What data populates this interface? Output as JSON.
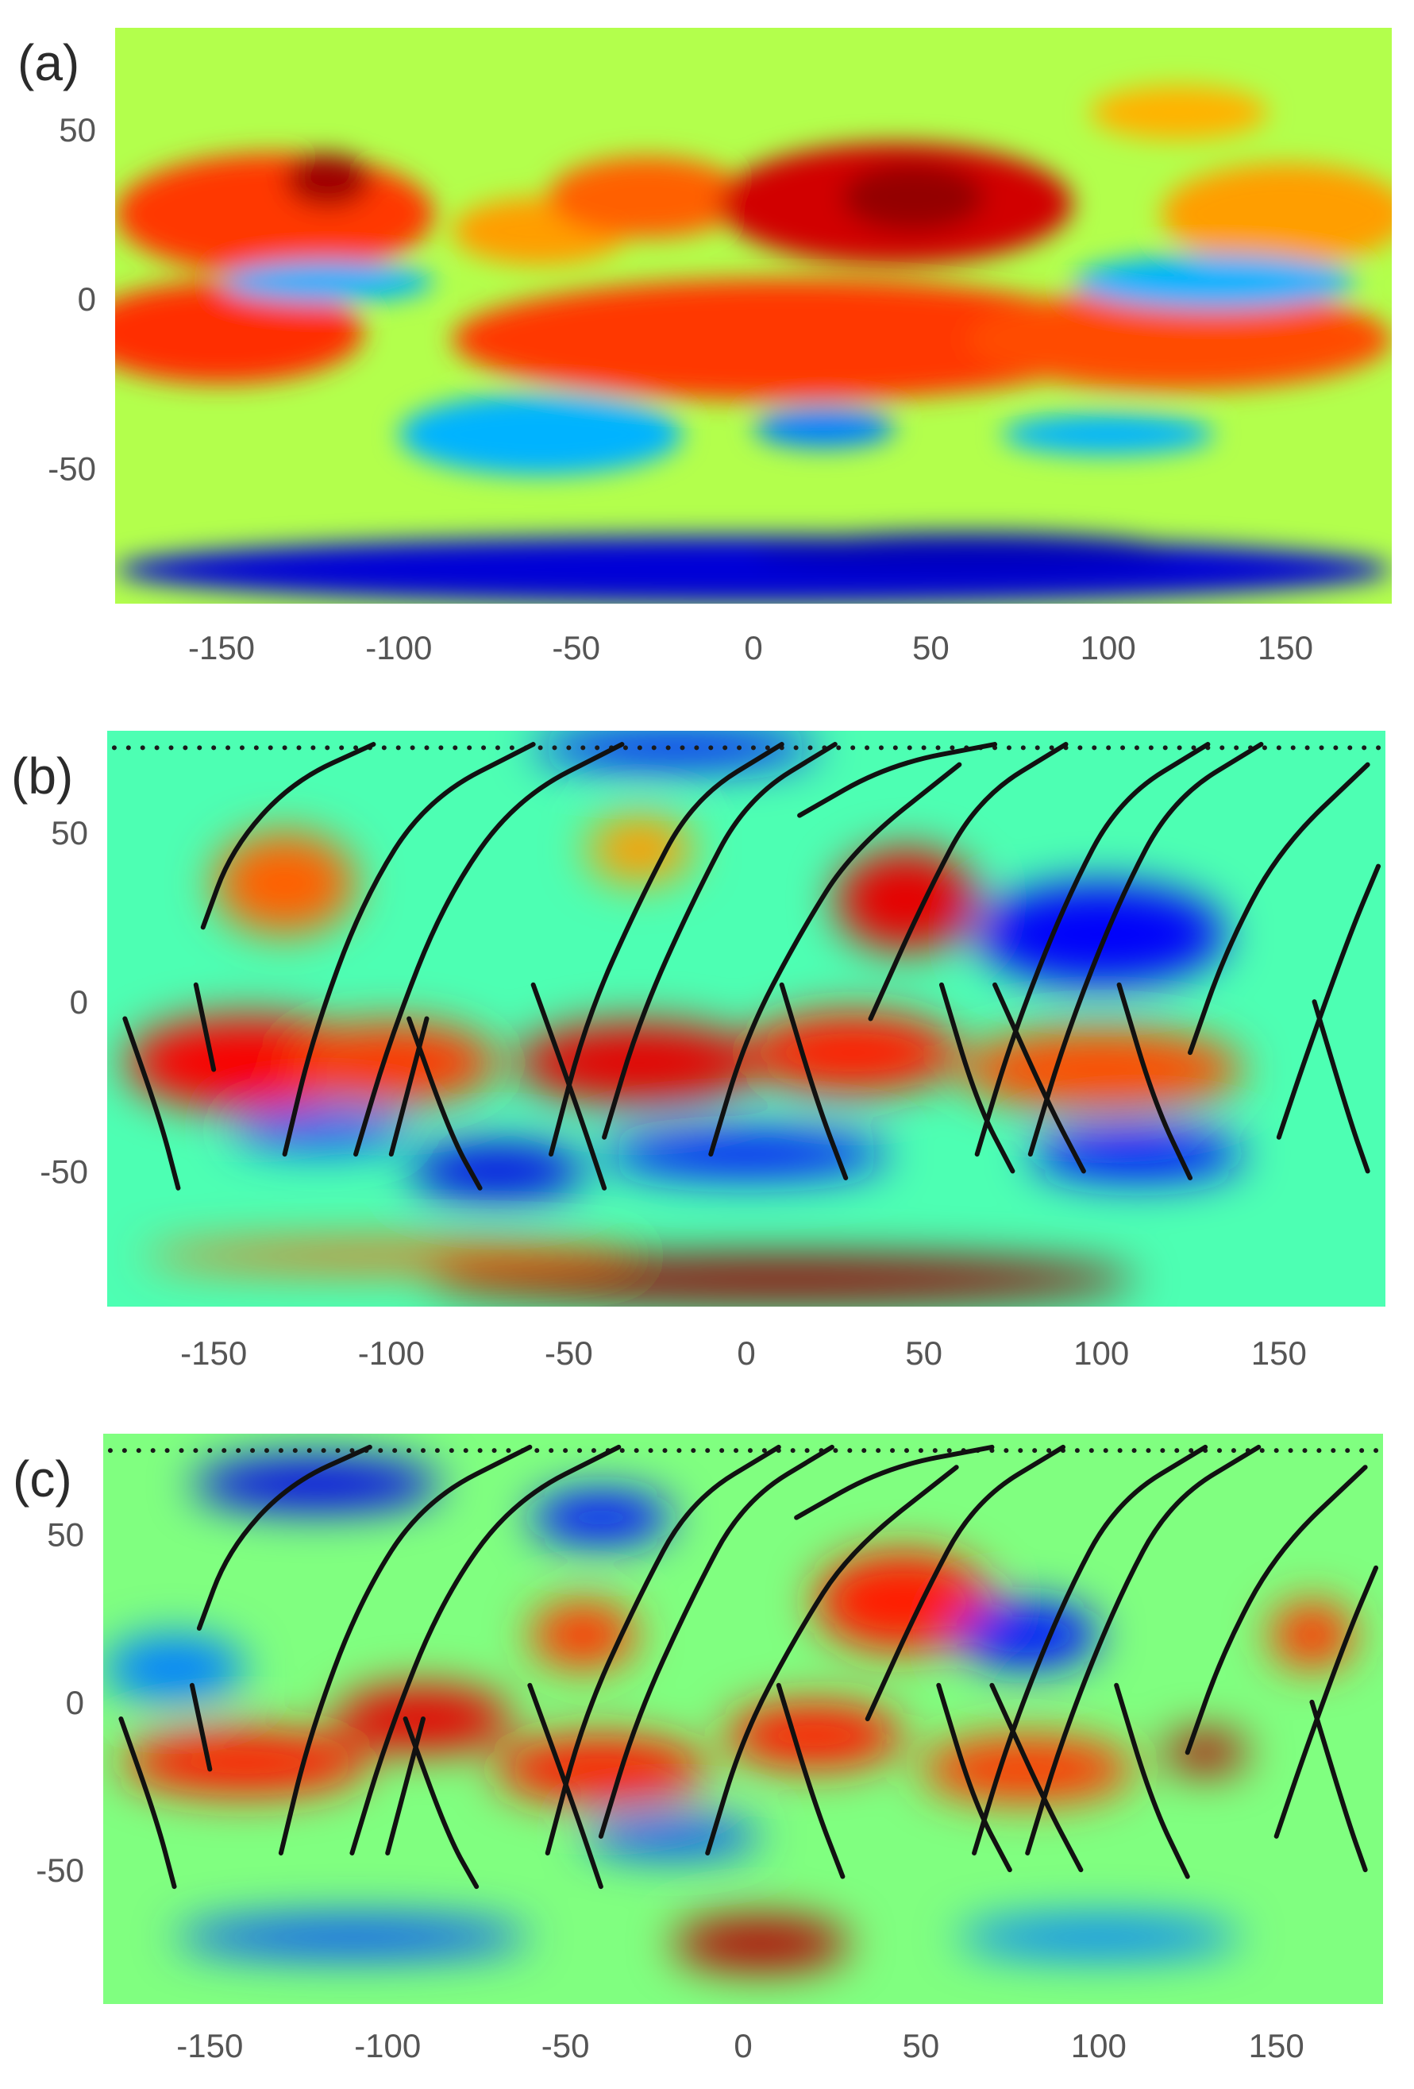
{
  "chart_data": [
    {
      "type": "heatmap",
      "panel_label": "(a)",
      "colormap": "jet",
      "xlim": [
        -180,
        180
      ],
      "ylim": [
        -90,
        80
      ],
      "x_ticks": [
        -150,
        -100,
        -50,
        0,
        50,
        100,
        150
      ],
      "y_ticks": [
        50,
        0,
        -50
      ],
      "x_tick_labels": [
        "-150",
        "-100",
        "-50",
        "0",
        "50",
        "100",
        "150"
      ],
      "y_tick_labels": [
        "50",
        "0",
        "-50"
      ],
      "field_blobs": [
        {
          "lon": -135,
          "lat": 25,
          "rx": 45,
          "ry": 18,
          "v": 0.82
        },
        {
          "lon": -120,
          "lat": 35,
          "rx": 12,
          "ry": 8,
          "v": 0.97
        },
        {
          "lon": -150,
          "lat": -10,
          "rx": 40,
          "ry": 15,
          "v": 0.83
        },
        {
          "lon": -60,
          "lat": 20,
          "rx": 25,
          "ry": 10,
          "v": 0.72
        },
        {
          "lon": -30,
          "lat": 30,
          "rx": 28,
          "ry": 12,
          "v": 0.78
        },
        {
          "lon": 40,
          "lat": 28,
          "rx": 50,
          "ry": 18,
          "v": 0.92
        },
        {
          "lon": 45,
          "lat": 30,
          "rx": 20,
          "ry": 10,
          "v": 0.98
        },
        {
          "lon": 10,
          "lat": -12,
          "rx": 95,
          "ry": 18,
          "v": 0.82
        },
        {
          "lon": 120,
          "lat": -12,
          "rx": 60,
          "ry": 15,
          "v": 0.8
        },
        {
          "lon": 150,
          "lat": 25,
          "rx": 35,
          "ry": 15,
          "v": 0.72
        },
        {
          "lon": 120,
          "lat": 55,
          "rx": 25,
          "ry": 8,
          "v": 0.7
        },
        {
          "lon": -60,
          "lat": -40,
          "rx": 40,
          "ry": 12,
          "v": 0.3
        },
        {
          "lon": 20,
          "lat": -38,
          "rx": 20,
          "ry": 6,
          "v": 0.25
        },
        {
          "lon": 100,
          "lat": -40,
          "rx": 30,
          "ry": 6,
          "v": 0.3
        },
        {
          "lon": -120,
          "lat": 5,
          "rx": 30,
          "ry": 6,
          "v": 0.3
        },
        {
          "lon": 130,
          "lat": 5,
          "rx": 40,
          "ry": 8,
          "v": 0.3
        },
        {
          "lon": 0,
          "lat": -80,
          "rx": 180,
          "ry": 10,
          "v": 0.08
        },
        {
          "lon": 60,
          "lat": -75,
          "rx": 60,
          "ry": 6,
          "v": 0.05
        }
      ],
      "background_value": 0.55,
      "tracks": []
    },
    {
      "type": "heatmap",
      "panel_label": "(b)",
      "colormap": "jet",
      "xlim": [
        -180,
        180
      ],
      "ylim": [
        -90,
        80
      ],
      "x_ticks": [
        -150,
        -100,
        -50,
        0,
        50,
        100,
        150
      ],
      "y_ticks": [
        50,
        0,
        -50
      ],
      "x_tick_labels": [
        "-150",
        "-100",
        "-50",
        "0",
        "50",
        "100",
        "150"
      ],
      "y_tick_labels": [
        "50",
        "0",
        "-50"
      ],
      "field_blobs": [
        {
          "lon": -140,
          "lat": -18,
          "rx": 35,
          "ry": 14,
          "v": 0.88
        },
        {
          "lon": -100,
          "lat": -18,
          "rx": 30,
          "ry": 12,
          "v": 0.82
        },
        {
          "lon": -30,
          "lat": -18,
          "rx": 35,
          "ry": 12,
          "v": 0.9
        },
        {
          "lon": 30,
          "lat": -15,
          "rx": 30,
          "ry": 12,
          "v": 0.85
        },
        {
          "lon": 100,
          "lat": -20,
          "rx": 40,
          "ry": 12,
          "v": 0.8
        },
        {
          "lon": 45,
          "lat": 30,
          "rx": 20,
          "ry": 15,
          "v": 0.9
        },
        {
          "lon": -130,
          "lat": 35,
          "rx": 20,
          "ry": 15,
          "v": 0.78
        },
        {
          "lon": -30,
          "lat": 45,
          "rx": 15,
          "ry": 10,
          "v": 0.72
        },
        {
          "lon": 100,
          "lat": 20,
          "rx": 35,
          "ry": 15,
          "v": 0.12
        },
        {
          "lon": -70,
          "lat": -50,
          "rx": 25,
          "ry": 8,
          "v": 0.1
        },
        {
          "lon": 0,
          "lat": -45,
          "rx": 40,
          "ry": 7,
          "v": 0.15
        },
        {
          "lon": 110,
          "lat": -45,
          "rx": 30,
          "ry": 8,
          "v": 0.15
        },
        {
          "lon": -120,
          "lat": -38,
          "rx": 25,
          "ry": 6,
          "v": 0.2
        },
        {
          "lon": -20,
          "lat": 75,
          "rx": 40,
          "ry": 6,
          "v": 0.15
        },
        {
          "lon": 10,
          "lat": -82,
          "rx": 100,
          "ry": 7,
          "v": 0.98
        },
        {
          "lon": -100,
          "lat": -75,
          "rx": 70,
          "ry": 4,
          "v": 0.78
        }
      ],
      "background_value": 0.45,
      "tracks": [
        [
          [
            -153,
            22
          ],
          [
            -145,
            45
          ],
          [
            -128,
            65
          ],
          [
            -105,
            76
          ]
        ],
        [
          [
            -130,
            -45
          ],
          [
            -122,
            -10
          ],
          [
            -108,
            30
          ],
          [
            -90,
            60
          ],
          [
            -60,
            76
          ]
        ],
        [
          [
            -110,
            -45
          ],
          [
            -100,
            -10
          ],
          [
            -85,
            30
          ],
          [
            -65,
            60
          ],
          [
            -35,
            76
          ]
        ],
        [
          [
            -55,
            -45
          ],
          [
            -45,
            -5
          ],
          [
            -30,
            30
          ],
          [
            -15,
            60
          ],
          [
            10,
            76
          ]
        ],
        [
          [
            -40,
            -40
          ],
          [
            -30,
            -5
          ],
          [
            -15,
            30
          ],
          [
            0,
            60
          ],
          [
            25,
            76
          ]
        ],
        [
          [
            15,
            55
          ],
          [
            40,
            70
          ],
          [
            70,
            76
          ]
        ],
        [
          [
            -10,
            -45
          ],
          [
            0,
            -10
          ],
          [
            15,
            20
          ],
          [
            30,
            45
          ],
          [
            60,
            70
          ]
        ],
        [
          [
            35,
            -5
          ],
          [
            50,
            30
          ],
          [
            65,
            60
          ],
          [
            90,
            76
          ]
        ],
        [
          [
            65,
            -45
          ],
          [
            75,
            -10
          ],
          [
            90,
            30
          ],
          [
            105,
            60
          ],
          [
            130,
            76
          ]
        ],
        [
          [
            80,
            -45
          ],
          [
            90,
            -10
          ],
          [
            105,
            30
          ],
          [
            120,
            60
          ],
          [
            145,
            76
          ]
        ],
        [
          [
            125,
            -15
          ],
          [
            135,
            15
          ],
          [
            150,
            45
          ],
          [
            175,
            70
          ]
        ],
        [
          [
            150,
            -40
          ],
          [
            158,
            -15
          ],
          [
            170,
            20
          ],
          [
            178,
            40
          ]
        ],
        [
          [
            -175,
            -5
          ],
          [
            -165,
            -35
          ],
          [
            -160,
            -55
          ]
        ],
        [
          [
            -155,
            5
          ],
          [
            -150,
            -20
          ]
        ],
        [
          [
            -95,
            -5
          ],
          [
            -83,
            -40
          ],
          [
            -75,
            -55
          ]
        ],
        [
          [
            -90,
            -5
          ],
          [
            -100,
            -45
          ]
        ],
        [
          [
            -60,
            5
          ],
          [
            -48,
            -30
          ],
          [
            -40,
            -55
          ]
        ],
        [
          [
            10,
            5
          ],
          [
            20,
            -30
          ],
          [
            28,
            -52
          ]
        ],
        [
          [
            55,
            5
          ],
          [
            65,
            -30
          ],
          [
            75,
            -50
          ]
        ],
        [
          [
            70,
            5
          ],
          [
            85,
            -30
          ],
          [
            95,
            -50
          ]
        ],
        [
          [
            105,
            5
          ],
          [
            115,
            -30
          ],
          [
            125,
            -52
          ]
        ],
        [
          [
            160,
            0
          ],
          [
            170,
            -35
          ],
          [
            175,
            -50
          ]
        ]
      ]
    },
    {
      "type": "heatmap",
      "panel_label": "(c)",
      "colormap": "jet",
      "xlim": [
        -180,
        180
      ],
      "ylim": [
        -90,
        80
      ],
      "x_ticks": [
        -150,
        -100,
        -50,
        0,
        50,
        100,
        150
      ],
      "y_ticks": [
        50,
        0,
        -50
      ],
      "x_tick_labels": [
        "-150",
        "-100",
        "-50",
        "0",
        "50",
        "100",
        "150"
      ],
      "y_tick_labels": [
        "50",
        "0",
        "-50"
      ],
      "field_blobs": [
        {
          "lon": -140,
          "lat": -18,
          "rx": 35,
          "ry": 10,
          "v": 0.85
        },
        {
          "lon": -90,
          "lat": -5,
          "rx": 25,
          "ry": 10,
          "v": 0.9
        },
        {
          "lon": -40,
          "lat": -20,
          "rx": 30,
          "ry": 10,
          "v": 0.85
        },
        {
          "lon": 20,
          "lat": -10,
          "rx": 25,
          "ry": 10,
          "v": 0.85
        },
        {
          "lon": 80,
          "lat": -20,
          "rx": 30,
          "ry": 10,
          "v": 0.82
        },
        {
          "lon": 130,
          "lat": -15,
          "rx": 12,
          "ry": 6,
          "v": 0.95
        },
        {
          "lon": 45,
          "lat": 30,
          "rx": 25,
          "ry": 15,
          "v": 0.85
        },
        {
          "lon": -45,
          "lat": 20,
          "rx": 15,
          "ry": 10,
          "v": 0.82
        },
        {
          "lon": 160,
          "lat": 20,
          "rx": 12,
          "ry": 10,
          "v": 0.82
        },
        {
          "lon": 5,
          "lat": -72,
          "rx": 25,
          "ry": 8,
          "v": 0.95
        },
        {
          "lon": -120,
          "lat": 65,
          "rx": 35,
          "ry": 8,
          "v": 0.1
        },
        {
          "lon": -40,
          "lat": 55,
          "rx": 20,
          "ry": 8,
          "v": 0.15
        },
        {
          "lon": 80,
          "lat": 20,
          "rx": 20,
          "ry": 10,
          "v": 0.15
        },
        {
          "lon": -110,
          "lat": -70,
          "rx": 50,
          "ry": 6,
          "v": 0.2
        },
        {
          "lon": -20,
          "lat": -40,
          "rx": 25,
          "ry": 6,
          "v": 0.2
        },
        {
          "lon": 100,
          "lat": -70,
          "rx": 40,
          "ry": 6,
          "v": 0.25
        },
        {
          "lon": -160,
          "lat": 10,
          "rx": 20,
          "ry": 10,
          "v": 0.25
        }
      ],
      "background_value": 0.5,
      "tracks": [
        [
          [
            -153,
            22
          ],
          [
            -145,
            45
          ],
          [
            -128,
            65
          ],
          [
            -105,
            76
          ]
        ],
        [
          [
            -130,
            -45
          ],
          [
            -122,
            -10
          ],
          [
            -108,
            30
          ],
          [
            -90,
            60
          ],
          [
            -60,
            76
          ]
        ],
        [
          [
            -110,
            -45
          ],
          [
            -100,
            -10
          ],
          [
            -85,
            30
          ],
          [
            -65,
            60
          ],
          [
            -35,
            76
          ]
        ],
        [
          [
            -55,
            -45
          ],
          [
            -45,
            -5
          ],
          [
            -30,
            30
          ],
          [
            -15,
            60
          ],
          [
            10,
            76
          ]
        ],
        [
          [
            -40,
            -40
          ],
          [
            -30,
            -5
          ],
          [
            -15,
            30
          ],
          [
            0,
            60
          ],
          [
            25,
            76
          ]
        ],
        [
          [
            15,
            55
          ],
          [
            40,
            70
          ],
          [
            70,
            76
          ]
        ],
        [
          [
            -10,
            -45
          ],
          [
            0,
            -10
          ],
          [
            15,
            20
          ],
          [
            30,
            45
          ],
          [
            60,
            70
          ]
        ],
        [
          [
            35,
            -5
          ],
          [
            50,
            30
          ],
          [
            65,
            60
          ],
          [
            90,
            76
          ]
        ],
        [
          [
            65,
            -45
          ],
          [
            75,
            -10
          ],
          [
            90,
            30
          ],
          [
            105,
            60
          ],
          [
            130,
            76
          ]
        ],
        [
          [
            80,
            -45
          ],
          [
            90,
            -10
          ],
          [
            105,
            30
          ],
          [
            120,
            60
          ],
          [
            145,
            76
          ]
        ],
        [
          [
            125,
            -15
          ],
          [
            135,
            15
          ],
          [
            150,
            45
          ],
          [
            175,
            70
          ]
        ],
        [
          [
            150,
            -40
          ],
          [
            158,
            -15
          ],
          [
            170,
            20
          ],
          [
            178,
            40
          ]
        ],
        [
          [
            -175,
            -5
          ],
          [
            -165,
            -35
          ],
          [
            -160,
            -55
          ]
        ],
        [
          [
            -155,
            5
          ],
          [
            -150,
            -20
          ]
        ],
        [
          [
            -95,
            -5
          ],
          [
            -83,
            -40
          ],
          [
            -75,
            -55
          ]
        ],
        [
          [
            -90,
            -5
          ],
          [
            -100,
            -45
          ]
        ],
        [
          [
            -60,
            5
          ],
          [
            -48,
            -30
          ],
          [
            -40,
            -55
          ]
        ],
        [
          [
            10,
            5
          ],
          [
            20,
            -30
          ],
          [
            28,
            -52
          ]
        ],
        [
          [
            55,
            5
          ],
          [
            65,
            -30
          ],
          [
            75,
            -50
          ]
        ],
        [
          [
            70,
            5
          ],
          [
            85,
            -30
          ],
          [
            95,
            -50
          ]
        ],
        [
          [
            105,
            5
          ],
          [
            115,
            -30
          ],
          [
            125,
            -52
          ]
        ],
        [
          [
            160,
            0
          ],
          [
            170,
            -35
          ],
          [
            175,
            -50
          ]
        ]
      ]
    }
  ]
}
